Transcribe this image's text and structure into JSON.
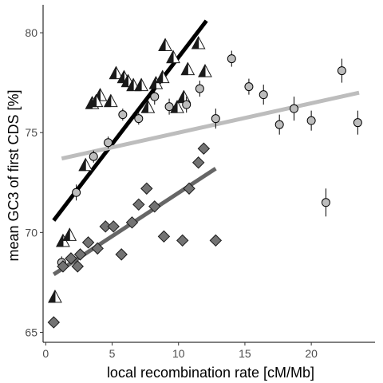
{
  "chart_data": {
    "type": "scatter",
    "title": "",
    "xlabel": "local recombination rate [cM/Mb]",
    "ylabel": "mean GC3 of first CDS [%]",
    "xlim": [
      -0.2,
      24.8
    ],
    "ylim": [
      64.5,
      81.4
    ],
    "x_ticks": [
      0,
      5,
      10,
      15,
      20
    ],
    "y_ticks": [
      65,
      70,
      75,
      80
    ],
    "grid": false,
    "legend": "none",
    "series": [
      {
        "marker": "half-filled-triangle",
        "color": "#1a1a1a",
        "fill": "#1a1a1a",
        "points": [
          [
            0.7,
            66.8
          ],
          [
            1.3,
            69.6
          ],
          [
            1.8,
            69.9
          ],
          [
            3.0,
            73.4
          ],
          [
            3.5,
            76.5
          ],
          [
            4.1,
            76.9
          ],
          [
            3.8,
            76.6
          ],
          [
            4.9,
            76.6
          ],
          [
            5.3,
            78.0
          ],
          [
            5.9,
            77.8
          ],
          [
            6.2,
            77.6
          ],
          [
            6.6,
            77.4
          ],
          [
            7.2,
            77.4
          ],
          [
            7.7,
            76.3
          ],
          [
            8.3,
            77.5
          ],
          [
            8.8,
            77.8
          ],
          [
            9.0,
            79.4
          ],
          [
            9.6,
            78.8
          ],
          [
            9.9,
            76.3
          ],
          [
            10.4,
            76.8
          ],
          [
            10.7,
            78.2
          ],
          [
            11.5,
            79.5
          ],
          [
            12.0,
            78.1
          ]
        ]
      },
      {
        "marker": "circle-with-errorbar",
        "color": "#000000",
        "fill": "#bdbdbd",
        "points": [
          [
            1.2,
            68.5
          ],
          [
            2.3,
            72.0
          ],
          [
            3.6,
            73.8
          ],
          [
            4.7,
            74.5
          ],
          [
            5.8,
            75.9
          ],
          [
            7.0,
            75.7
          ],
          [
            8.2,
            76.8
          ],
          [
            9.3,
            76.3
          ],
          [
            10.6,
            76.4
          ],
          [
            11.6,
            77.2
          ],
          [
            12.8,
            75.7
          ],
          [
            14.0,
            78.7
          ],
          [
            15.3,
            77.3
          ],
          [
            16.4,
            76.9
          ],
          [
            17.6,
            75.4
          ],
          [
            18.7,
            76.2
          ],
          [
            20.0,
            75.6
          ],
          [
            21.1,
            71.5
          ],
          [
            22.3,
            78.1
          ],
          [
            23.5,
            75.5
          ]
        ],
        "errors": [
          0.3,
          0.4,
          0.3,
          0.3,
          0.3,
          0.3,
          0.4,
          0.4,
          0.4,
          0.4,
          0.5,
          0.4,
          0.4,
          0.5,
          0.5,
          0.6,
          0.5,
          0.7,
          0.6,
          0.6
        ]
      },
      {
        "marker": "diamond",
        "color": "#1a1a1a",
        "fill": "#737373",
        "points": [
          [
            0.6,
            65.5
          ],
          [
            1.3,
            68.3
          ],
          [
            1.9,
            68.7
          ],
          [
            2.4,
            68.3
          ],
          [
            2.6,
            68.9
          ],
          [
            3.2,
            69.5
          ],
          [
            3.9,
            69.2
          ],
          [
            4.5,
            70.3
          ],
          [
            5.1,
            70.3
          ],
          [
            5.7,
            68.9
          ],
          [
            6.5,
            70.5
          ],
          [
            7.0,
            71.4
          ],
          [
            7.6,
            72.2
          ],
          [
            8.2,
            71.3
          ],
          [
            8.9,
            69.8
          ],
          [
            10.3,
            69.6
          ],
          [
            10.8,
            72.2
          ],
          [
            11.5,
            73.5
          ],
          [
            11.9,
            74.2
          ],
          [
            12.8,
            69.6
          ]
        ]
      }
    ],
    "fit_lines": [
      {
        "color": "#000000",
        "x": [
          0.6,
          12.1
        ],
        "y": [
          70.6,
          80.6
        ]
      },
      {
        "color": "#bdbdbd",
        "x": [
          1.2,
          23.6
        ],
        "y": [
          73.7,
          77.0
        ]
      },
      {
        "color": "#666666",
        "x": [
          0.6,
          12.8
        ],
        "y": [
          67.9,
          73.2
        ]
      }
    ]
  }
}
